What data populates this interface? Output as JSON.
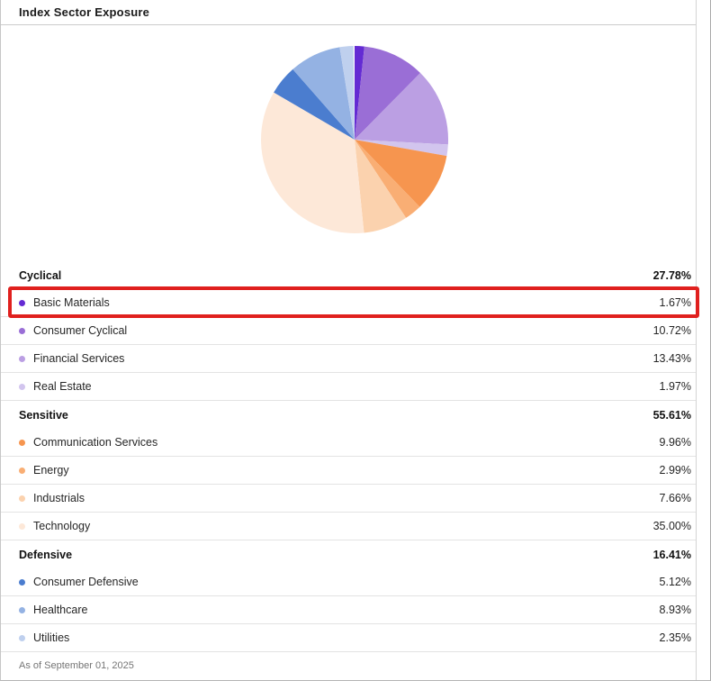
{
  "panel": {
    "title": "Index Sector Exposure",
    "footer": "As of September 01, 2025"
  },
  "highlight": {
    "target": "Basic Materials",
    "color": "#e0201e"
  },
  "chart_data": {
    "type": "pie",
    "title": "Index Sector Exposure",
    "unit": "percent",
    "start_angle": "12-oclock",
    "direction": "clockwise",
    "legend_position": "bottom",
    "total_basis": 100,
    "groups": [
      {
        "name": "Cyclical",
        "total": 27.78,
        "total_label": "27.78%",
        "items": [
          {
            "label": "Basic Materials",
            "value": 1.67,
            "value_label": "1.67%",
            "color": "#642bd3"
          },
          {
            "label": "Consumer Cyclical",
            "value": 10.72,
            "value_label": "10.72%",
            "color": "#9a6ed6"
          },
          {
            "label": "Financial Services",
            "value": 13.43,
            "value_label": "13.43%",
            "color": "#bb9fe3"
          },
          {
            "label": "Real Estate",
            "value": 1.97,
            "value_label": "1.97%",
            "color": "#d2c5ee"
          }
        ]
      },
      {
        "name": "Sensitive",
        "total": 55.61,
        "total_label": "55.61%",
        "items": [
          {
            "label": "Communication Services",
            "value": 9.96,
            "value_label": "9.96%",
            "color": "#f6954f"
          },
          {
            "label": "Energy",
            "value": 2.99,
            "value_label": "2.99%",
            "color": "#f9ae74"
          },
          {
            "label": "Industrials",
            "value": 7.66,
            "value_label": "7.66%",
            "color": "#fbd2ae"
          },
          {
            "label": "Technology",
            "value": 35.0,
            "value_label": "35.00%",
            "color": "#fde8d8"
          }
        ]
      },
      {
        "name": "Defensive",
        "total": 16.41,
        "total_label": "16.41%",
        "items": [
          {
            "label": "Consumer Defensive",
            "value": 5.12,
            "value_label": "5.12%",
            "color": "#4b7dcf"
          },
          {
            "label": "Healthcare",
            "value": 8.93,
            "value_label": "8.93%",
            "color": "#94b2e3"
          },
          {
            "label": "Utilities",
            "value": 2.35,
            "value_label": "2.35%",
            "color": "#bfd0ee"
          }
        ]
      }
    ]
  }
}
